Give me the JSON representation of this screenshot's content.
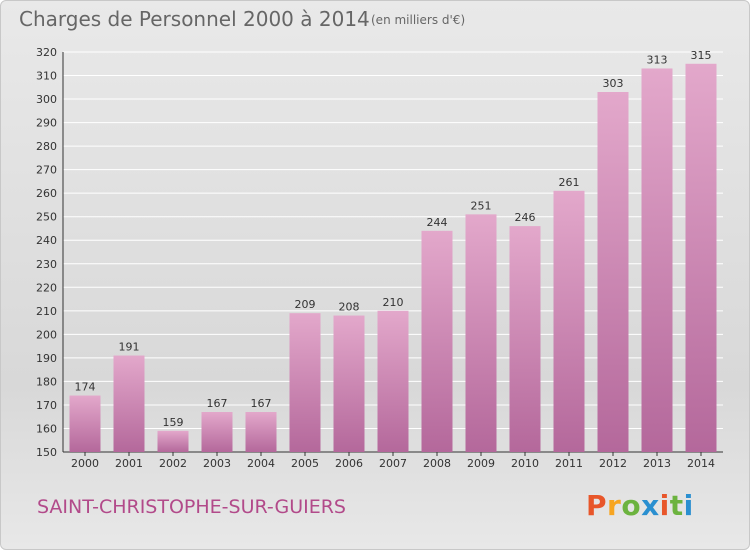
{
  "header": {
    "title": "Charges de Personnel 2000 à 2014",
    "unit": "(en milliers d'€)"
  },
  "footer": {
    "commune": "SAINT-CHRISTOPHE-SUR-GUIERS",
    "brand": "Proxiti"
  },
  "colors": {
    "bar_top": "#e3a8cb",
    "bar_bottom": "#b4689b",
    "grid": "#ffffff",
    "commune": "#b24a8a",
    "brand_letters": [
      "#e8562a",
      "#f7a521",
      "#6cb33f",
      "#2a8fd0",
      "#e8562a",
      "#6cb33f",
      "#2a8fd0"
    ]
  },
  "chart_data": {
    "type": "bar",
    "title": "Charges de Personnel 2000 à 2014",
    "subtitle": "(en milliers d'€)",
    "xlabel": "",
    "ylabel": "",
    "categories": [
      "2000",
      "2001",
      "2002",
      "2003",
      "2004",
      "2005",
      "2006",
      "2007",
      "2008",
      "2009",
      "2010",
      "2011",
      "2012",
      "2013",
      "2014"
    ],
    "values": [
      174,
      191,
      159,
      167,
      167,
      209,
      208,
      210,
      244,
      251,
      246,
      261,
      303,
      313,
      315
    ],
    "ylim": [
      150,
      320
    ],
    "yticks": [
      150,
      160,
      170,
      180,
      190,
      200,
      210,
      220,
      230,
      240,
      250,
      260,
      270,
      280,
      290,
      300,
      310,
      320
    ],
    "grid": true,
    "data_labels": true
  }
}
